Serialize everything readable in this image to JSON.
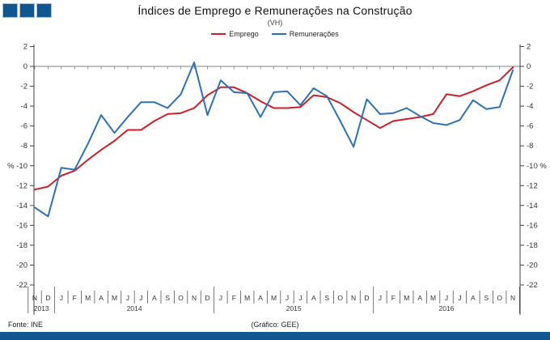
{
  "logo": {
    "color": "#10578f",
    "square_count": 3
  },
  "footer_bar": {
    "color": "#10578f"
  },
  "chart_data": {
    "type": "line",
    "title": "Índices de Emprego e Remunerações na Construção",
    "subtitle": "(VH)",
    "source": "Fonte: INE",
    "credit": "(Gráfico: GEE)",
    "unit": "%",
    "unit_tick_value": -10,
    "ylim": [
      -22,
      2
    ],
    "ytick_step": 2,
    "grid": "zero-line-only",
    "legend_position": "top-center",
    "dual_axis": true,
    "categories_months": [
      "N",
      "D",
      "J",
      "F",
      "M",
      "A",
      "M",
      "J",
      "J",
      "A",
      "S",
      "O",
      "N",
      "D",
      "J",
      "F",
      "M",
      "A",
      "M",
      "J",
      "J",
      "A",
      "S",
      "O",
      "N",
      "D",
      "J",
      "F",
      "M",
      "A",
      "M",
      "J",
      "J",
      "A",
      "S",
      "O",
      "N"
    ],
    "years": [
      {
        "label": "2013",
        "start": 0,
        "end": 1
      },
      {
        "label": "2014",
        "start": 2,
        "end": 13
      },
      {
        "label": "2015",
        "start": 14,
        "end": 25
      },
      {
        "label": "2016",
        "start": 26,
        "end": 36
      }
    ],
    "series": [
      {
        "name": "Emprego",
        "color": "#cb2026",
        "values": [
          -12.4,
          -12.1,
          -11.0,
          -10.5,
          -9.4,
          -8.4,
          -7.5,
          -6.4,
          -6.4,
          -5.5,
          -4.8,
          -4.7,
          -4.2,
          -2.9,
          -2.1,
          -2.1,
          -2.7,
          -3.5,
          -4.2,
          -4.2,
          -4.1,
          -2.9,
          -3.1,
          -3.7,
          -4.6,
          -5.4,
          -6.2,
          -5.5,
          -5.3,
          -5.1,
          -4.8,
          -2.8,
          -3.0,
          -2.5,
          -1.9,
          -1.4,
          -0.1
        ]
      },
      {
        "name": "Remunerações",
        "color": "#2b72b5",
        "values": [
          -14.2,
          -15.1,
          -10.2,
          -10.4,
          -7.8,
          -4.9,
          -6.7,
          -5.1,
          -3.6,
          -3.6,
          -4.2,
          -2.8,
          0.4,
          -4.9,
          -1.4,
          -2.6,
          -2.7,
          -5.1,
          -2.6,
          -2.5,
          -3.9,
          -2.2,
          -3.0,
          -5.5,
          -8.1,
          -3.3,
          -4.8,
          -4.7,
          -4.2,
          -5.0,
          -5.7,
          -5.9,
          -5.4,
          -3.4,
          -4.3,
          -4.1,
          -0.4
        ]
      }
    ]
  }
}
